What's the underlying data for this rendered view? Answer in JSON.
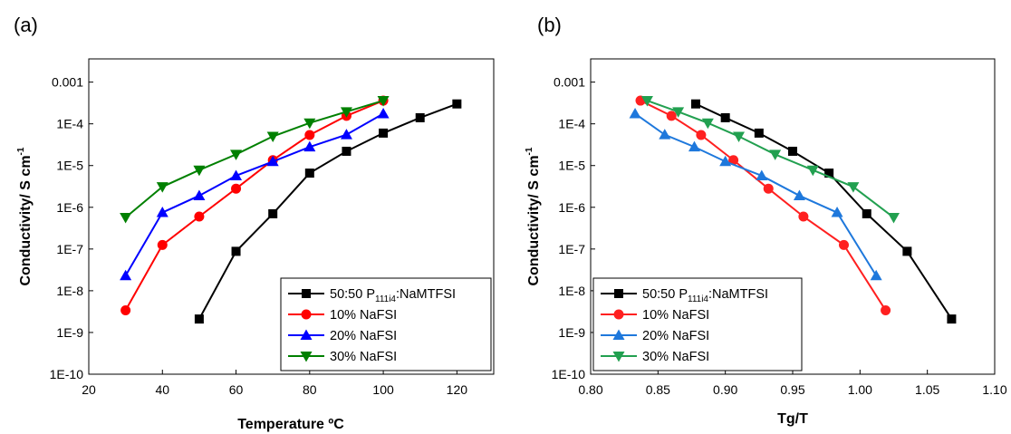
{
  "panels": [
    {
      "label": "(a)",
      "xlabel": "Temperature ºC",
      "ylabel": {
        "base": "Conductivity/ S cm",
        "sup": "-1"
      },
      "legend_title": {
        "prefix": "50:50 P",
        "sub": "111i4",
        "suffix": ":NaMTFSI"
      }
    },
    {
      "label": "(b)",
      "xlabel": "Tg/T",
      "ylabel": {
        "base": "Conductivity/ S cm",
        "sup": "-1"
      },
      "legend_title": {
        "prefix": "50:50 P",
        "sub": "111i4",
        "suffix": ":NaMTFSI"
      }
    }
  ],
  "chart_data": [
    {
      "type": "line",
      "panel": "(a)",
      "xlabel": "Temperature ºC",
      "ylabel": "Conductivity/ S cm-1",
      "yscale": "log",
      "xlim": [
        20,
        130
      ],
      "ylim": [
        1e-10,
        0.003
      ],
      "xticks": [
        20,
        40,
        60,
        80,
        100,
        120
      ],
      "xtick_labels": [
        "20",
        "40",
        "60",
        "80",
        "100",
        "120"
      ],
      "yticks": [
        1e-10,
        1e-09,
        1e-08,
        1e-07,
        1e-06,
        1e-05,
        0.0001,
        0.001
      ],
      "ytick_labels": [
        "1E-10",
        "1E-9",
        "1E-8",
        "1E-7",
        "1E-6",
        "1E-5",
        "1E-4",
        "0.001"
      ],
      "legend_position": "bottom-right",
      "series": [
        {
          "name": "50:50 P111i4:NaMTFSI",
          "color": "#000000",
          "marker": "square",
          "x": [
            50,
            60,
            70,
            80,
            90,
            100,
            110,
            120
          ],
          "y": [
            2.1e-09,
            8.8e-08,
            7e-07,
            6.6e-06,
            2.2e-05,
            6e-05,
            0.00014,
            0.0003
          ]
        },
        {
          "name": "10% NaFSI",
          "color": "#ff0000",
          "marker": "circle",
          "x": [
            30,
            40,
            50,
            60,
            70,
            80,
            90,
            100
          ],
          "y": [
            3.4e-09,
            1.25e-07,
            6e-07,
            2.8e-06,
            1.35e-05,
            5.4e-05,
            0.000155,
            0.00036
          ]
        },
        {
          "name": "20% NaFSI",
          "color": "#0000ff",
          "marker": "triangle-up",
          "x": [
            30,
            40,
            50,
            60,
            70,
            80,
            90,
            100
          ],
          "y": [
            2.3e-08,
            7.5e-07,
            1.9e-06,
            5.7e-06,
            1.25e-05,
            2.8e-05,
            5.5e-05,
            0.000175
          ]
        },
        {
          "name": "30% NaFSI",
          "color": "#008000",
          "marker": "triangle-down",
          "x": [
            30,
            40,
            50,
            60,
            70,
            80,
            90,
            100
          ],
          "y": [
            5.7e-07,
            3.1e-06,
            7.8e-06,
            1.85e-05,
            5e-05,
            0.000105,
            0.000195,
            0.00036
          ]
        }
      ]
    },
    {
      "type": "line",
      "panel": "(b)",
      "xlabel": "Tg/T",
      "ylabel": "Conductivity/ S cm-1",
      "yscale": "log",
      "xlim": [
        0.8,
        1.1
      ],
      "ylim": [
        1e-10,
        0.003
      ],
      "xticks": [
        0.8,
        0.85,
        0.9,
        0.95,
        1.0,
        1.05,
        1.1
      ],
      "xtick_labels": [
        "0.80",
        "0.85",
        "0.90",
        "0.95",
        "1.00",
        "1.05",
        "1.10"
      ],
      "yticks": [
        1e-10,
        1e-09,
        1e-08,
        1e-07,
        1e-06,
        1e-05,
        0.0001,
        0.001
      ],
      "ytick_labels": [
        "1E-10",
        "1E-9",
        "1E-8",
        "1E-7",
        "1E-6",
        "1E-5",
        "1E-4",
        "0.001"
      ],
      "legend_position": "bottom-left",
      "series": [
        {
          "name": "50:50 P111i4:NaMTFSI",
          "color": "#000000",
          "marker": "square",
          "x": [
            0.878,
            0.9,
            0.925,
            0.95,
            0.977,
            1.005,
            1.035,
            1.068
          ],
          "y": [
            0.0003,
            0.00014,
            6e-05,
            2.2e-05,
            6.6e-06,
            7e-07,
            8.8e-08,
            2.1e-09
          ]
        },
        {
          "name": "10% NaFSI",
          "color": "#ff2020",
          "marker": "circle",
          "x": [
            0.837,
            0.86,
            0.882,
            0.906,
            0.932,
            0.958,
            0.988,
            1.019
          ],
          "y": [
            0.00036,
            0.000155,
            5.4e-05,
            1.35e-05,
            2.8e-06,
            6e-07,
            1.25e-07,
            3.4e-09
          ]
        },
        {
          "name": "20% NaFSI",
          "color": "#1e78dc",
          "marker": "triangle-up",
          "x": [
            0.833,
            0.855,
            0.877,
            0.9,
            0.927,
            0.955,
            0.983,
            1.012
          ],
          "y": [
            0.000175,
            5.5e-05,
            2.8e-05,
            1.25e-05,
            5.7e-06,
            1.9e-06,
            7.5e-07,
            2.3e-08
          ]
        },
        {
          "name": "30% NaFSI",
          "color": "#22a050",
          "marker": "triangle-down",
          "x": [
            0.842,
            0.865,
            0.887,
            0.91,
            0.937,
            0.965,
            0.995,
            1.025
          ],
          "y": [
            0.00036,
            0.000195,
            0.000105,
            5e-05,
            1.85e-05,
            7.8e-06,
            3.1e-06,
            5.7e-07
          ]
        }
      ]
    }
  ]
}
